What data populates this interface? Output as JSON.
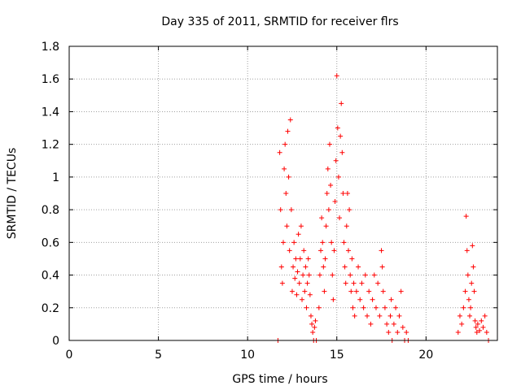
{
  "chart_data": {
    "type": "scatter",
    "title": "Day 335 of 2011, SRMTID for receiver flrs",
    "xlabel": "GPS time / hours",
    "ylabel": "SRMTID / TECUs",
    "xlim": [
      0,
      24
    ],
    "ylim": [
      0,
      1.8
    ],
    "xticks": [
      0,
      5,
      10,
      15,
      20
    ],
    "yticks": [
      0,
      0.2,
      0.4,
      0.6,
      0.8,
      1,
      1.2,
      1.4,
      1.6,
      1.8
    ],
    "ytick_labels": [
      "0",
      "0.2",
      "0.4",
      "0.6",
      "0.8",
      "1",
      "1.2",
      "1.4",
      "1.6",
      "1.8"
    ],
    "grid": true,
    "marker": "+",
    "color": "#ff0000",
    "series": [
      {
        "name": "SRMTID",
        "points": [
          [
            11.7,
            0.0
          ],
          [
            11.8,
            1.15
          ],
          [
            11.85,
            0.8
          ],
          [
            11.9,
            0.45
          ],
          [
            11.95,
            0.35
          ],
          [
            12.0,
            0.6
          ],
          [
            12.05,
            1.05
          ],
          [
            12.1,
            1.2
          ],
          [
            12.15,
            0.9
          ],
          [
            12.2,
            0.7
          ],
          [
            12.25,
            1.28
          ],
          [
            12.3,
            1.0
          ],
          [
            12.35,
            0.55
          ],
          [
            12.4,
            1.35
          ],
          [
            12.45,
            0.8
          ],
          [
            12.5,
            0.3
          ],
          [
            12.55,
            0.45
          ],
          [
            12.6,
            0.6
          ],
          [
            12.65,
            0.38
          ],
          [
            12.7,
            0.5
          ],
          [
            12.75,
            0.28
          ],
          [
            12.8,
            0.42
          ],
          [
            12.85,
            0.65
          ],
          [
            12.9,
            0.35
          ],
          [
            12.95,
            0.5
          ],
          [
            13.0,
            0.7
          ],
          [
            13.05,
            0.25
          ],
          [
            13.1,
            0.4
          ],
          [
            13.15,
            0.55
          ],
          [
            13.2,
            0.3
          ],
          [
            13.25,
            0.45
          ],
          [
            13.3,
            0.2
          ],
          [
            13.35,
            0.35
          ],
          [
            13.4,
            0.5
          ],
          [
            13.45,
            0.4
          ],
          [
            13.5,
            0.28
          ],
          [
            13.55,
            0.15
          ],
          [
            13.6,
            0.1
          ],
          [
            13.65,
            0.05
          ],
          [
            13.7,
            0.0
          ],
          [
            13.75,
            0.08
          ],
          [
            13.8,
            0.12
          ],
          [
            13.85,
            0.0
          ],
          [
            14.0,
            0.2
          ],
          [
            14.05,
            0.4
          ],
          [
            14.1,
            0.55
          ],
          [
            14.15,
            0.75
          ],
          [
            14.2,
            0.6
          ],
          [
            14.25,
            0.45
          ],
          [
            14.3,
            0.3
          ],
          [
            14.35,
            0.5
          ],
          [
            14.4,
            0.7
          ],
          [
            14.45,
            0.9
          ],
          [
            14.5,
            1.05
          ],
          [
            14.55,
            0.8
          ],
          [
            14.6,
            1.2
          ],
          [
            14.65,
            0.95
          ],
          [
            14.7,
            0.6
          ],
          [
            14.75,
            0.4
          ],
          [
            14.8,
            0.25
          ],
          [
            14.85,
            0.55
          ],
          [
            14.9,
            0.85
          ],
          [
            14.95,
            1.1
          ],
          [
            15.0,
            1.62
          ],
          [
            15.05,
            1.3
          ],
          [
            15.1,
            1.0
          ],
          [
            15.15,
            0.75
          ],
          [
            15.2,
            1.25
          ],
          [
            15.25,
            1.45
          ],
          [
            15.3,
            1.15
          ],
          [
            15.35,
            0.9
          ],
          [
            15.4,
            0.6
          ],
          [
            15.45,
            0.45
          ],
          [
            15.5,
            0.35
          ],
          [
            15.55,
            0.7
          ],
          [
            15.6,
            0.9
          ],
          [
            15.65,
            0.55
          ],
          [
            15.7,
            0.8
          ],
          [
            15.75,
            0.4
          ],
          [
            15.8,
            0.3
          ],
          [
            15.85,
            0.5
          ],
          [
            15.9,
            0.2
          ],
          [
            15.95,
            0.35
          ],
          [
            16.0,
            0.15
          ],
          [
            16.1,
            0.3
          ],
          [
            16.2,
            0.45
          ],
          [
            16.3,
            0.25
          ],
          [
            16.4,
            0.35
          ],
          [
            16.5,
            0.2
          ],
          [
            16.6,
            0.4
          ],
          [
            16.7,
            0.15
          ],
          [
            16.8,
            0.3
          ],
          [
            16.9,
            0.1
          ],
          [
            17.0,
            0.25
          ],
          [
            17.1,
            0.4
          ],
          [
            17.2,
            0.2
          ],
          [
            17.3,
            0.35
          ],
          [
            17.4,
            0.15
          ],
          [
            17.5,
            0.55
          ],
          [
            17.55,
            0.45
          ],
          [
            17.6,
            0.3
          ],
          [
            17.7,
            0.2
          ],
          [
            17.8,
            0.1
          ],
          [
            17.9,
            0.05
          ],
          [
            18.0,
            0.15
          ],
          [
            18.05,
            0.25
          ],
          [
            18.1,
            0.0
          ],
          [
            18.2,
            0.1
          ],
          [
            18.3,
            0.2
          ],
          [
            18.4,
            0.05
          ],
          [
            18.5,
            0.15
          ],
          [
            18.6,
            0.3
          ],
          [
            18.7,
            0.08
          ],
          [
            18.8,
            0.0
          ],
          [
            18.9,
            0.05
          ],
          [
            19.0,
            0.0
          ],
          [
            21.8,
            0.05
          ],
          [
            21.9,
            0.15
          ],
          [
            22.0,
            0.1
          ],
          [
            22.1,
            0.2
          ],
          [
            22.2,
            0.3
          ],
          [
            22.25,
            0.76
          ],
          [
            22.3,
            0.55
          ],
          [
            22.35,
            0.4
          ],
          [
            22.4,
            0.25
          ],
          [
            22.45,
            0.15
          ],
          [
            22.5,
            0.2
          ],
          [
            22.55,
            0.35
          ],
          [
            22.6,
            0.58
          ],
          [
            22.65,
            0.45
          ],
          [
            22.7,
            0.3
          ],
          [
            22.75,
            0.12
          ],
          [
            22.8,
            0.08
          ],
          [
            22.85,
            0.05
          ],
          [
            22.9,
            0.1
          ],
          [
            23.0,
            0.06
          ],
          [
            23.1,
            0.12
          ],
          [
            23.2,
            0.08
          ],
          [
            23.3,
            0.15
          ],
          [
            23.4,
            0.05
          ],
          [
            23.5,
            0.0
          ]
        ]
      }
    ]
  }
}
